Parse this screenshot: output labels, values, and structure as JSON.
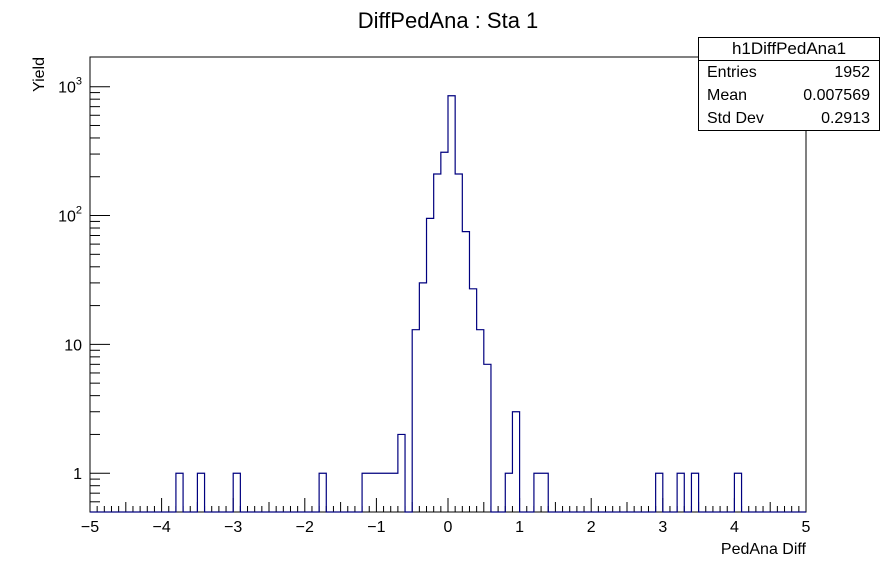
{
  "chart_data": {
    "type": "histogram",
    "title": "DiffPedAna : Sta 1",
    "xlabel": "PedAna Diff",
    "ylabel": "Yield",
    "xlim": [
      -5,
      5
    ],
    "ylim": [
      0.5,
      1700
    ],
    "yscale": "log",
    "grid": false,
    "bin_width": 0.1,
    "x_ticks": [
      "−5",
      "−4",
      "−3",
      "−2",
      "−1",
      "0",
      "1",
      "2",
      "3",
      "4",
      "5"
    ],
    "y_ticks": [
      {
        "base": "1",
        "exp": ""
      },
      {
        "base": "10",
        "exp": ""
      },
      {
        "base": "10",
        "exp": "2"
      },
      {
        "base": "10",
        "exp": "3"
      }
    ],
    "line_color": "#00007f",
    "bins": [
      {
        "x": -3.8,
        "y": 1
      },
      {
        "x": -3.5,
        "y": 1
      },
      {
        "x": -3.0,
        "y": 1
      },
      {
        "x": -1.8,
        "y": 1
      },
      {
        "x": -1.2,
        "y": 1
      },
      {
        "x": -1.1,
        "y": 1
      },
      {
        "x": -1.0,
        "y": 1
      },
      {
        "x": -0.9,
        "y": 1
      },
      {
        "x": -0.8,
        "y": 1
      },
      {
        "x": -0.7,
        "y": 2
      },
      {
        "x": -0.5,
        "y": 13
      },
      {
        "x": -0.4,
        "y": 30
      },
      {
        "x": -0.3,
        "y": 95
      },
      {
        "x": -0.2,
        "y": 210
      },
      {
        "x": -0.1,
        "y": 310
      },
      {
        "x": 0.0,
        "y": 850
      },
      {
        "x": 0.1,
        "y": 210
      },
      {
        "x": 0.2,
        "y": 75
      },
      {
        "x": 0.3,
        "y": 27
      },
      {
        "x": 0.4,
        "y": 13
      },
      {
        "x": 0.5,
        "y": 7
      },
      {
        "x": 0.8,
        "y": 1
      },
      {
        "x": 0.9,
        "y": 3
      },
      {
        "x": 1.2,
        "y": 1
      },
      {
        "x": 1.3,
        "y": 1
      },
      {
        "x": 2.9,
        "y": 1
      },
      {
        "x": 3.2,
        "y": 1
      },
      {
        "x": 3.4,
        "y": 1
      },
      {
        "x": 4.0,
        "y": 1
      }
    ],
    "stats": {
      "name": "h1DiffPedAna1",
      "entries_label": "Entries",
      "entries": "1952",
      "mean_label": "Mean",
      "mean": "0.007569",
      "std_label": "Std Dev",
      "std": "0.2913"
    }
  }
}
